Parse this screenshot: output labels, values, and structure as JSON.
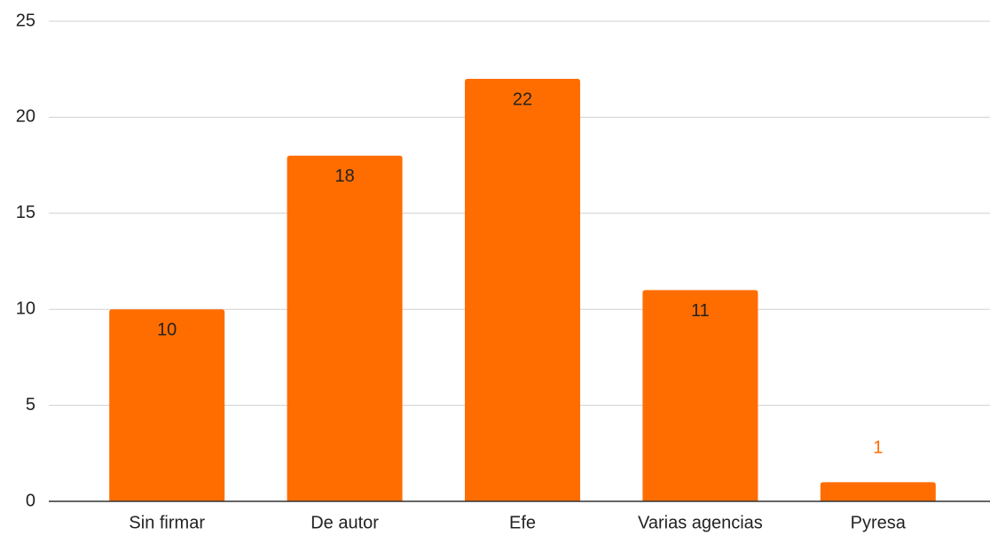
{
  "chart_data": {
    "type": "bar",
    "categories": [
      "Sin firmar",
      "De autor",
      "Efe",
      "Varias agencias",
      "Pyresa"
    ],
    "values": [
      10,
      18,
      22,
      11,
      1
    ],
    "color": "#ff6d01",
    "ylim": [
      0,
      25
    ],
    "yticks": [
      0,
      5,
      10,
      15,
      20,
      25
    ],
    "grid": true
  }
}
